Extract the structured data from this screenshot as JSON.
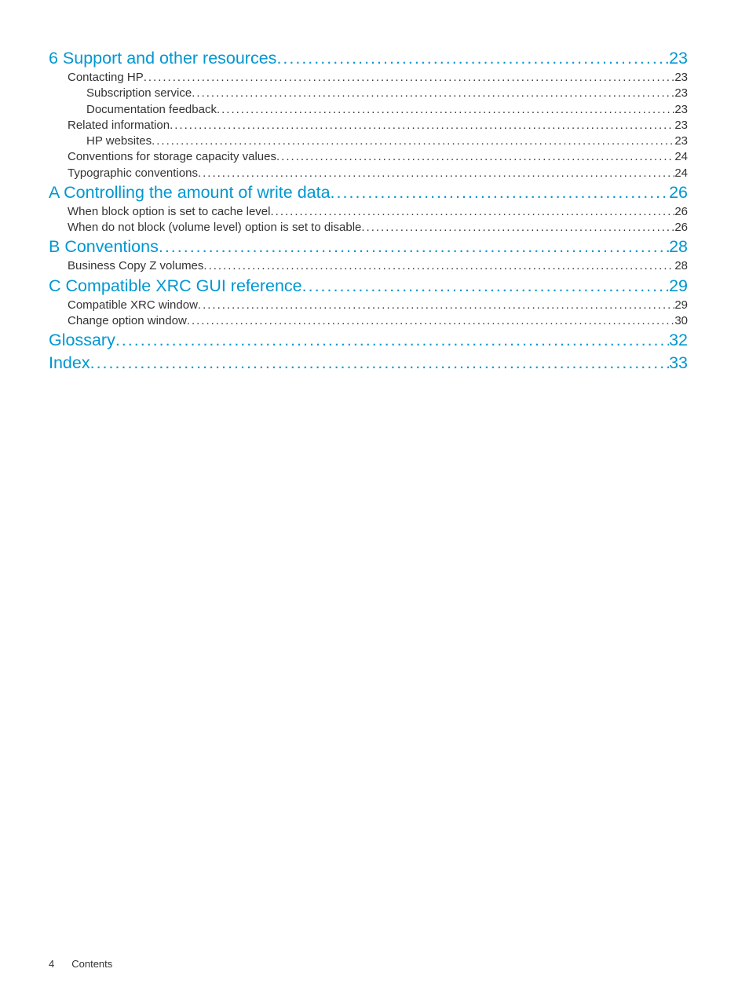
{
  "colors": {
    "link": "#0097d1",
    "text": "#333333",
    "background": "#ffffff"
  },
  "typography": {
    "chapter_fontsize_pt": 16,
    "body_fontsize_pt": 11,
    "footer_fontsize_pt": 10,
    "font_family": "sans-serif"
  },
  "toc": [
    {
      "level": 1,
      "label": "6 Support and other resources",
      "page": "23"
    },
    {
      "level": 2,
      "label": "Contacting HP",
      "page": "23"
    },
    {
      "level": 3,
      "label": "Subscription service",
      "page": "23"
    },
    {
      "level": 3,
      "label": "Documentation feedback",
      "page": "23"
    },
    {
      "level": 2,
      "label": "Related information",
      "page": "23"
    },
    {
      "level": 3,
      "label": "HP websites",
      "page": "23"
    },
    {
      "level": 2,
      "label": "Conventions for storage capacity values",
      "page": "24"
    },
    {
      "level": 2,
      "label": "Typographic conventions",
      "page": "24"
    },
    {
      "level": 1,
      "label": "A Controlling the amount of write data",
      "page": "26"
    },
    {
      "level": 2,
      "label": "When block option is set to cache level",
      "page": "26"
    },
    {
      "level": 2,
      "label": "When do not block (volume level) option is set to disable",
      "page": "26"
    },
    {
      "level": 1,
      "label": "B Conventions",
      "page": "28"
    },
    {
      "level": 2,
      "label": "Business Copy Z volumes",
      "page": "28"
    },
    {
      "level": 1,
      "label": "C Compatible XRC GUI reference",
      "page": "29"
    },
    {
      "level": 2,
      "label": "Compatible XRC window",
      "page": "29"
    },
    {
      "level": 2,
      "label": "Change option window",
      "page": "30"
    },
    {
      "level": 1,
      "label": "Glossary",
      "page": "32"
    },
    {
      "level": 1,
      "label": "Index",
      "page": "33"
    }
  ],
  "footer": {
    "page_number": "4",
    "section": "Contents"
  }
}
